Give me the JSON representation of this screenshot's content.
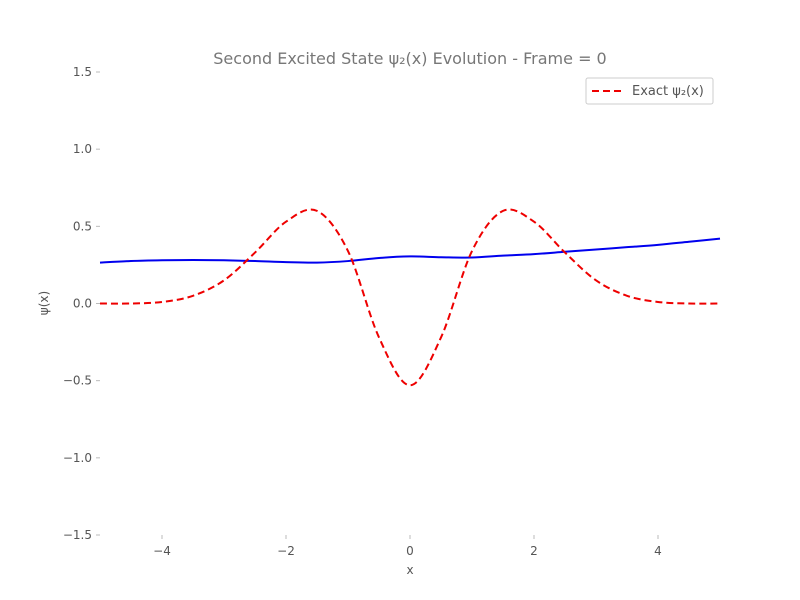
{
  "chart_data": {
    "type": "line",
    "title": "Second Excited State ψ₂(x) Evolution - Frame = 0",
    "xlabel": "x",
    "ylabel": "ψ(x)",
    "xlim": [
      -5,
      5
    ],
    "ylim": [
      -1.5,
      1.5
    ],
    "x_ticks": [
      -4,
      -2,
      0,
      2,
      4
    ],
    "x_tick_labels": [
      "−4",
      "−2",
      "0",
      "2",
      "4"
    ],
    "y_ticks": [
      1.5,
      1.0,
      0.5,
      0.0,
      -0.5,
      -1.0,
      -1.5
    ],
    "y_tick_labels": [
      "1.5",
      "1.0",
      "0.5",
      "0.0",
      "−0.5",
      "−1.0",
      "−1.5"
    ],
    "grid": false,
    "legend_position": "top-right",
    "series": [
      {
        "color": "#0000ee",
        "style": "solid",
        "x": [
          -5,
          -4.5,
          -4,
          -3.5,
          -3,
          -2.5,
          -2,
          -1.5,
          -1,
          -0.5,
          0,
          0.5,
          1,
          1.5,
          2,
          2.5,
          3,
          3.5,
          4,
          4.5,
          5
        ],
        "y": [
          0.265,
          0.275,
          0.28,
          0.282,
          0.28,
          0.275,
          0.268,
          0.265,
          0.275,
          0.295,
          0.305,
          0.3,
          0.298,
          0.31,
          0.32,
          0.335,
          0.35,
          0.365,
          0.38,
          0.4,
          0.42
        ]
      },
      {
        "name": "Exact ψ₂(x)",
        "color": "#ee0000",
        "style": "dashed",
        "x": [
          -5,
          -4.5,
          -4,
          -3.5,
          -3,
          -2.5,
          -2,
          -1.5,
          -1,
          -0.5,
          0,
          0.5,
          1,
          1.5,
          2,
          2.5,
          3,
          3.5,
          4,
          4.5,
          5
        ],
        "y": [
          0.0,
          0.0,
          0.01,
          0.05,
          0.15,
          0.33,
          0.53,
          0.6,
          0.34,
          -0.22,
          -0.53,
          -0.22,
          0.34,
          0.6,
          0.53,
          0.33,
          0.15,
          0.05,
          0.01,
          0.0,
          0.0
        ]
      }
    ]
  }
}
